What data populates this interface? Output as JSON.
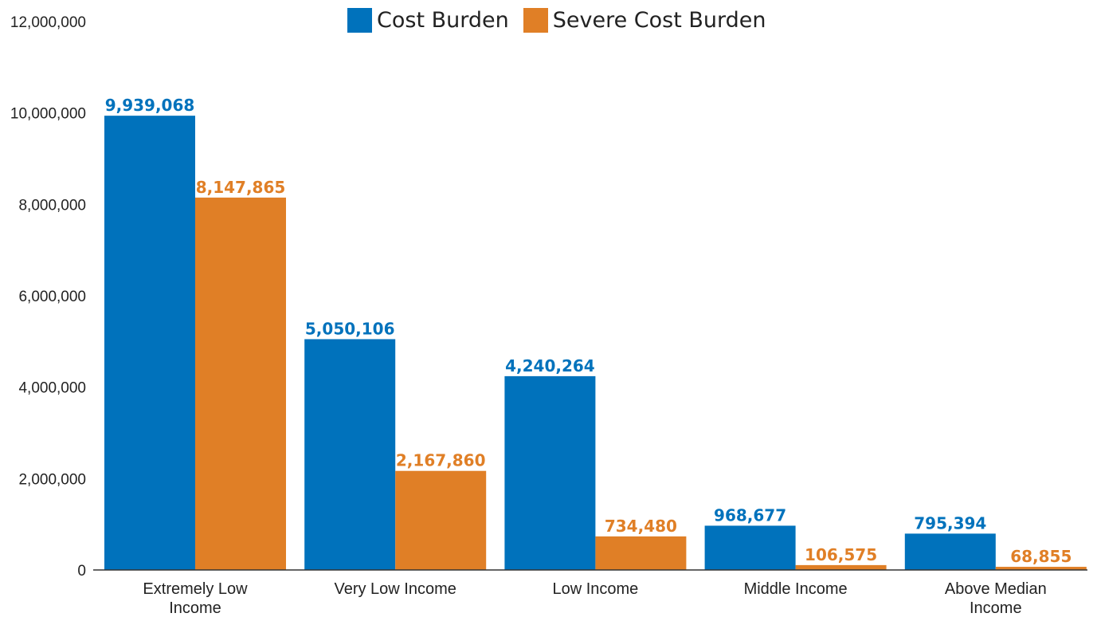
{
  "chart_data": {
    "type": "bar",
    "categories": [
      "Extremely Low Income",
      "Very Low Income",
      "Low Income",
      "Middle Income",
      "Above Median Income"
    ],
    "category_lines": [
      [
        "Extremely Low",
        "Income"
      ],
      [
        "Very Low Income"
      ],
      [
        "Low Income"
      ],
      [
        "Middle Income"
      ],
      [
        "Above Median",
        "Income"
      ]
    ],
    "series": [
      {
        "name": "Cost Burden",
        "color": "#0072BC",
        "values": [
          9939068,
          5050106,
          4240264,
          968677,
          795394
        ],
        "labels": [
          "9,939,068",
          "5,050,106",
          "4,240,264",
          "968,677",
          "795,394"
        ]
      },
      {
        "name": "Severe Cost Burden",
        "color": "#E07F26",
        "values": [
          8147865,
          2167860,
          734480,
          106575,
          68855
        ],
        "labels": [
          "8,147,865",
          "2,167,860",
          "734,480",
          "106,575",
          "68,855"
        ]
      }
    ],
    "title": "",
    "xlabel": "",
    "ylabel": "",
    "ylim": [
      0,
      12000000
    ],
    "yticks": [
      0,
      2000000,
      4000000,
      6000000,
      8000000,
      10000000,
      12000000
    ],
    "ytick_labels": [
      "0",
      "2,000,000",
      "4,000,000",
      "6,000,000",
      "8,000,000",
      "10,000,000",
      "12,000,000"
    ],
    "grid": false,
    "legend_position": "top-center"
  }
}
